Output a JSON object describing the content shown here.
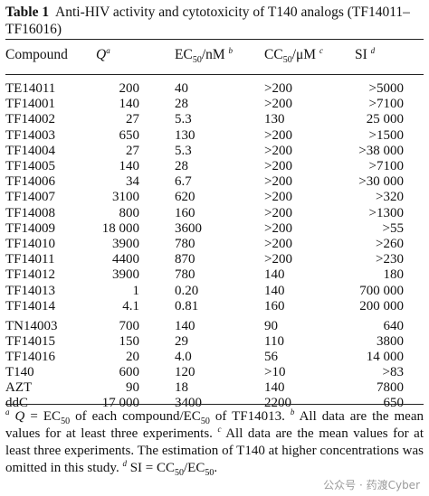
{
  "caption": {
    "label": "Table 1",
    "text": "Anti-HIV activity and cytotoxicity of T140 analogs (TF14011–TF16016)"
  },
  "headers": {
    "compound": "Compound",
    "q": "Q",
    "q_sup": "a",
    "ec_pre": "EC",
    "ec_sub": "50",
    "ec_post": "/nM",
    "ec_sup": "b",
    "cc_pre": "CC",
    "cc_sub": "50",
    "cc_post": "/μM",
    "cc_sup": "c",
    "si": "SI",
    "si_sup": "d"
  },
  "rows": [
    {
      "compound": "TE14011",
      "q": "200",
      "ec50": "40",
      "cc50": ">200",
      "si": ">5000"
    },
    {
      "compound": "TF14001",
      "q": "140",
      "ec50": "28",
      "cc50": ">200",
      "si": ">7100"
    },
    {
      "compound": "TF14002",
      "q": "27",
      "ec50": "5.3",
      "cc50": "130",
      "si": "25 000"
    },
    {
      "compound": "TF14003",
      "q": "650",
      "ec50": "130",
      "cc50": ">200",
      "si": ">1500"
    },
    {
      "compound": "TF14004",
      "q": "27",
      "ec50": "5.3",
      "cc50": ">200",
      "si": ">38 000"
    },
    {
      "compound": "TF14005",
      "q": "140",
      "ec50": "28",
      "cc50": ">200",
      "si": ">7100"
    },
    {
      "compound": "TF14006",
      "q": "34",
      "ec50": "6.7",
      "cc50": ">200",
      "si": ">30 000"
    },
    {
      "compound": "TF14007",
      "q": "3100",
      "ec50": "620",
      "cc50": ">200",
      "si": ">320"
    },
    {
      "compound": "TF14008",
      "q": "800",
      "ec50": "160",
      "cc50": ">200",
      "si": ">1300"
    },
    {
      "compound": "TF14009",
      "q": "18 000",
      "ec50": "3600",
      "cc50": ">200",
      "si": ">55"
    },
    {
      "compound": "TF14010",
      "q": "3900",
      "ec50": "780",
      "cc50": ">200",
      "si": ">260"
    },
    {
      "compound": "TF14011",
      "q": "4400",
      "ec50": "870",
      "cc50": ">200",
      "si": ">230"
    },
    {
      "compound": "TF14012",
      "q": "3900",
      "ec50": "780",
      "cc50": "140",
      "si": "180"
    },
    {
      "compound": "TF14013",
      "q": "1",
      "ec50": "0.20",
      "cc50": "140",
      "si": "700 000"
    },
    {
      "compound": "TF14014",
      "q": "4.1",
      "ec50": "0.81",
      "cc50": "160",
      "si": "200 000"
    },
    {
      "compound": "TN14003",
      "q": "700",
      "ec50": "140",
      "cc50": "90",
      "si": "640"
    },
    {
      "compound": "TF14015",
      "q": "150",
      "ec50": "29",
      "cc50": "110",
      "si": "3800"
    },
    {
      "compound": "TF14016",
      "q": "20",
      "ec50": "4.0",
      "cc50": "56",
      "si": "14 000"
    },
    {
      "compound": "T140",
      "q": "600",
      "ec50": "120",
      "cc50": ">10",
      "si": ">83"
    },
    {
      "compound": "AZT",
      "q": "90",
      "ec50": "18",
      "cc50": "140",
      "si": "7800"
    },
    {
      "compound": "ddC",
      "q": "17 000",
      "ec50": "3400",
      "cc50": "2200",
      "si": "650"
    }
  ],
  "footnote": {
    "a_mark": "a",
    "a_q": "Q",
    "a_eq": " = EC",
    "a_sub1": "50",
    "a_mid": " of each compound/EC",
    "a_sub2": "50",
    "a_end": " of TF14013. ",
    "b_mark": "b",
    "b_text": " All data are the mean values for at least three experiments. ",
    "c_mark": "c",
    "c_text": " All data are the mean values for at least three experiments. The estimation of T140 at higher concentrations was omitted in this study. ",
    "d_mark": "d",
    "d_pre": " SI = CC",
    "d_sub1": "50",
    "d_mid": "/EC",
    "d_sub2": "50",
    "d_end": "."
  },
  "watermark": "公众号 · 药渡Cyber"
}
